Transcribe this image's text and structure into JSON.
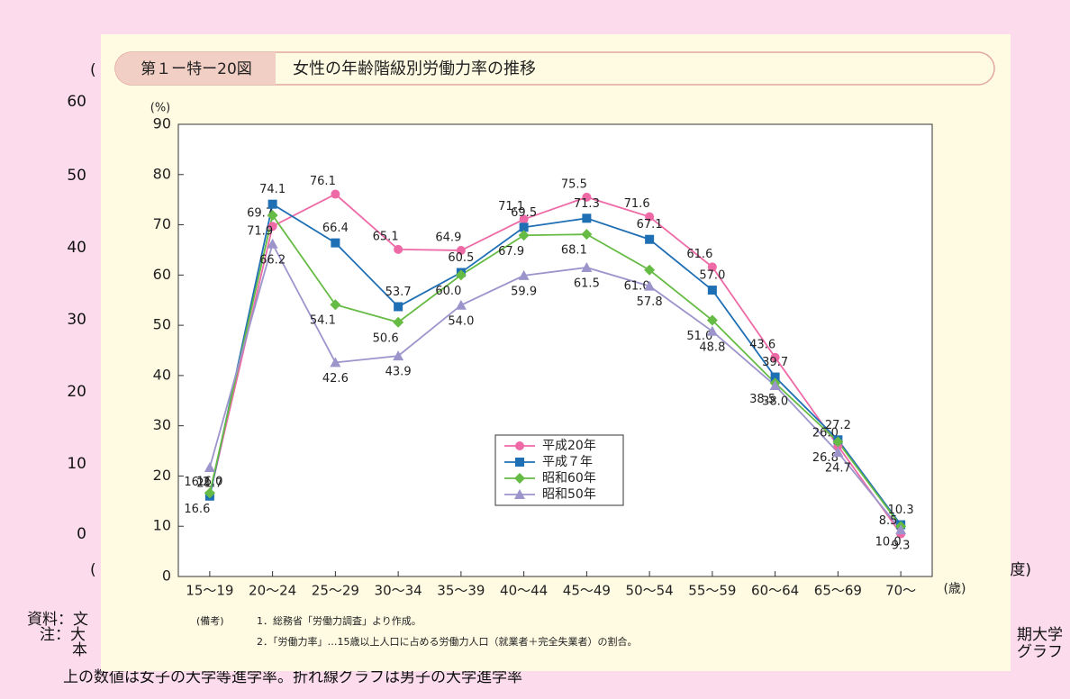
{
  "chart_data": {
    "type": "line",
    "figure_number": "第１ー特ー20図",
    "title": "女性の年齢階級別労働力率の推移",
    "y_label": "(%)",
    "x_label": "(歳)",
    "categories": [
      "15～19",
      "20～24",
      "25～29",
      "30～34",
      "35～39",
      "40～44",
      "45～49",
      "50～54",
      "55～59",
      "60～64",
      "65～69",
      "70～"
    ],
    "series": [
      {
        "name": "平成20年",
        "color": "#ee6aa7",
        "marker": "circle",
        "values": [
          16.2,
          69.7,
          76.1,
          65.1,
          64.9,
          71.1,
          75.5,
          71.6,
          61.6,
          43.6,
          26.0,
          8.5
        ],
        "value_labels": [
          "16.2",
          "69.7",
          "76.1",
          "65.1",
          "64.9",
          "71.1",
          "75.5",
          "71.6",
          "61.6",
          "43.6",
          "26.0",
          "8.5"
        ]
      },
      {
        "name": "平成７年",
        "color": "#1f6fb5",
        "marker": "square",
        "values": [
          16.0,
          74.1,
          66.4,
          53.7,
          60.5,
          69.5,
          71.3,
          67.1,
          57.0,
          39.7,
          27.2,
          10.3
        ],
        "value_labels": [
          "16.0",
          "74.1",
          "66.4",
          "53.7",
          "60.5",
          "69.5",
          "71.3",
          "67.1",
          "57.0",
          "39.7",
          "27.2",
          "10.3"
        ]
      },
      {
        "name": "昭和60年",
        "color": "#66bb44",
        "marker": "diamond",
        "values": [
          16.6,
          71.9,
          54.1,
          50.6,
          60.0,
          67.9,
          68.1,
          61.0,
          51.0,
          38.5,
          26.8,
          10.0
        ],
        "value_labels": [
          "16.6",
          "71.9",
          "54.1",
          "50.6",
          "60.0",
          "67.9",
          "68.1",
          "61.0",
          "51.0",
          "38.5",
          "26.8",
          "10.0"
        ]
      },
      {
        "name": "昭和50年",
        "color": "#9b95cc",
        "marker": "triangle",
        "values": [
          21.7,
          66.2,
          42.6,
          43.9,
          54.0,
          59.9,
          61.5,
          57.8,
          48.8,
          38.0,
          24.7,
          9.3
        ],
        "value_labels": [
          "21.7",
          "66.2",
          "42.6",
          "43.9",
          "54.0",
          "59.9",
          "61.5",
          "57.8",
          "48.8",
          "38.0",
          "24.7",
          "9.3"
        ]
      }
    ],
    "ylim": [
      0,
      90
    ],
    "yticks": [
      0,
      10,
      20,
      30,
      40,
      50,
      60,
      70,
      80,
      90
    ],
    "legend": "center",
    "notes": [
      "(備考)",
      "1．総務省「労働力調査」より作成。",
      "2．「労働力率」…15歳以上人口に占める労働力人口（就業者＋完全失業者）の割合。"
    ]
  },
  "background": {
    "left_ticks": [
      "60",
      "50",
      "40",
      "30",
      "20",
      "10",
      "0"
    ],
    "fragments": [
      "(",
      "(",
      "度)",
      "資料：文",
      "注：大",
      "本",
      "期大学",
      "グラフ",
      "上の数値は女子の大学等進学率。折れ線グラフは男子の大学進学率"
    ]
  }
}
